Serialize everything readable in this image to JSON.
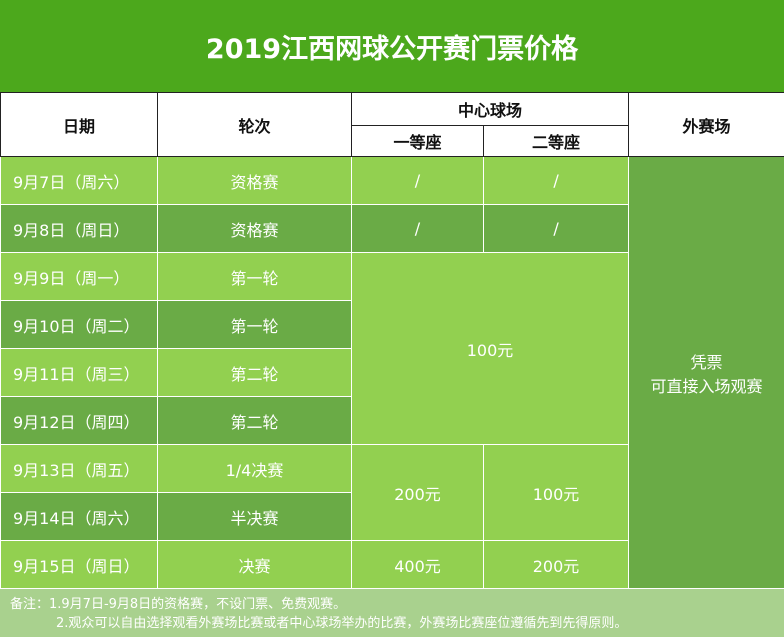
{
  "title": "2019江西网球公开赛门票价格",
  "headers": {
    "date": "日期",
    "round": "轮次",
    "center": "中心球场",
    "first": "一等座",
    "second": "二等座",
    "outer": "外赛场"
  },
  "rows": [
    {
      "date": "9月7日（周六）",
      "round": "资格赛",
      "first": "/",
      "second": "/"
    },
    {
      "date": "9月8日（周日）",
      "round": "资格赛",
      "first": "/",
      "second": "/"
    },
    {
      "date": "9月9日（周一）",
      "round": "第一轮"
    },
    {
      "date": "9月10日（周二）",
      "round": "第一轮"
    },
    {
      "date": "9月11日（周三）",
      "round": "第二轮"
    },
    {
      "date": "9月12日（周四）",
      "round": "第二轮"
    },
    {
      "date": "9月13日（周五）",
      "round": "1/4决赛"
    },
    {
      "date": "9月14日（周六）",
      "round": "半决赛"
    },
    {
      "date": "9月15日（周日）",
      "round": "决赛",
      "first": "400元",
      "second": "200元"
    }
  ],
  "merged": {
    "early_rounds": "100元",
    "qf_sf_first": "200元",
    "qf_sf_second": "100元",
    "outer_line1": "凭票",
    "outer_line2": "可直接入场观赛"
  },
  "note": {
    "line1": "备注：1.9月7日-9月8日的资格赛，不设门票、免费观赛。",
    "line2": "2.观众可以自由选择观看外赛场比赛或者中心球场举办的比赛，外赛场比赛座位遵循先到先得原则。"
  },
  "colors": {
    "title": "#4ca81c",
    "light": "#92d050",
    "dark": "#6aab46",
    "note": "#a9d18e"
  }
}
